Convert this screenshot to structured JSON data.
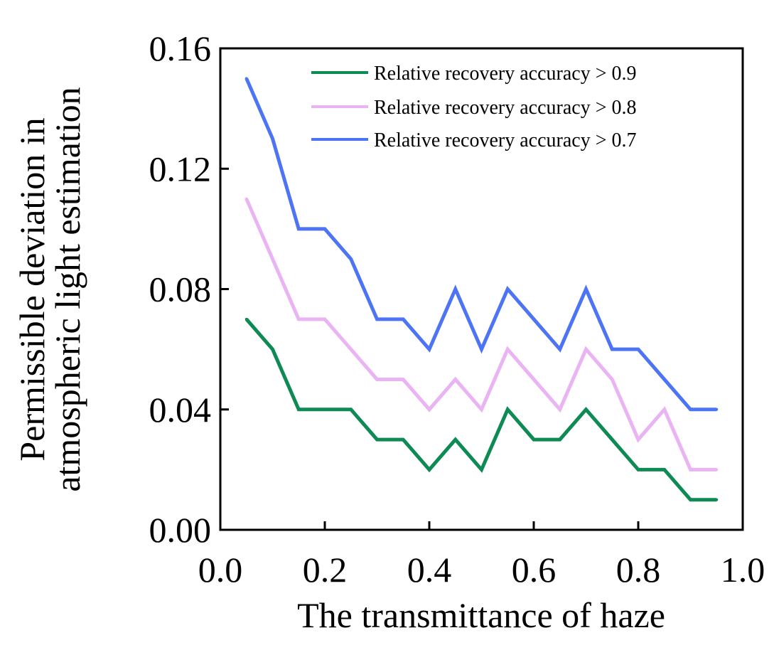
{
  "chart_data": {
    "type": "line",
    "xlabel": "The transmittance of haze",
    "ylabel_lines": [
      "Permissible deviation in",
      "atmospheric light estimation"
    ],
    "xlim": [
      0.0,
      1.0
    ],
    "ylim": [
      0.0,
      0.16
    ],
    "x_ticks": [
      "0.0",
      "0.2",
      "0.4",
      "0.6",
      "0.8",
      "1.0"
    ],
    "y_ticks": [
      "0.00",
      "0.04",
      "0.08",
      "0.12",
      "0.16"
    ],
    "x": [
      0.05,
      0.1,
      0.15,
      0.2,
      0.25,
      0.3,
      0.35,
      0.4,
      0.45,
      0.5,
      0.55,
      0.6,
      0.65,
      0.7,
      0.75,
      0.8,
      0.85,
      0.9,
      0.95
    ],
    "series": [
      {
        "name": "Relative recovery accuracy > 0.9",
        "color": "#0e8a55",
        "values": [
          0.07,
          0.06,
          0.04,
          0.04,
          0.04,
          0.03,
          0.03,
          0.02,
          0.03,
          0.02,
          0.04,
          0.03,
          0.03,
          0.04,
          0.03,
          0.02,
          0.02,
          0.01,
          0.01
        ]
      },
      {
        "name": "Relative recovery accuracy > 0.8",
        "color": "#eab4f4",
        "values": [
          0.11,
          0.09,
          0.07,
          0.07,
          0.06,
          0.05,
          0.05,
          0.04,
          0.05,
          0.04,
          0.06,
          0.05,
          0.04,
          0.06,
          0.05,
          0.03,
          0.04,
          0.02,
          0.02
        ]
      },
      {
        "name": "Relative recovery accuracy > 0.7",
        "color": "#4d74f4",
        "values": [
          0.15,
          0.13,
          0.1,
          0.1,
          0.09,
          0.07,
          0.07,
          0.06,
          0.08,
          0.06,
          0.08,
          0.07,
          0.06,
          0.08,
          0.06,
          0.06,
          0.05,
          0.04,
          0.04
        ]
      }
    ],
    "legend_position": "top-right",
    "grid": false
  }
}
